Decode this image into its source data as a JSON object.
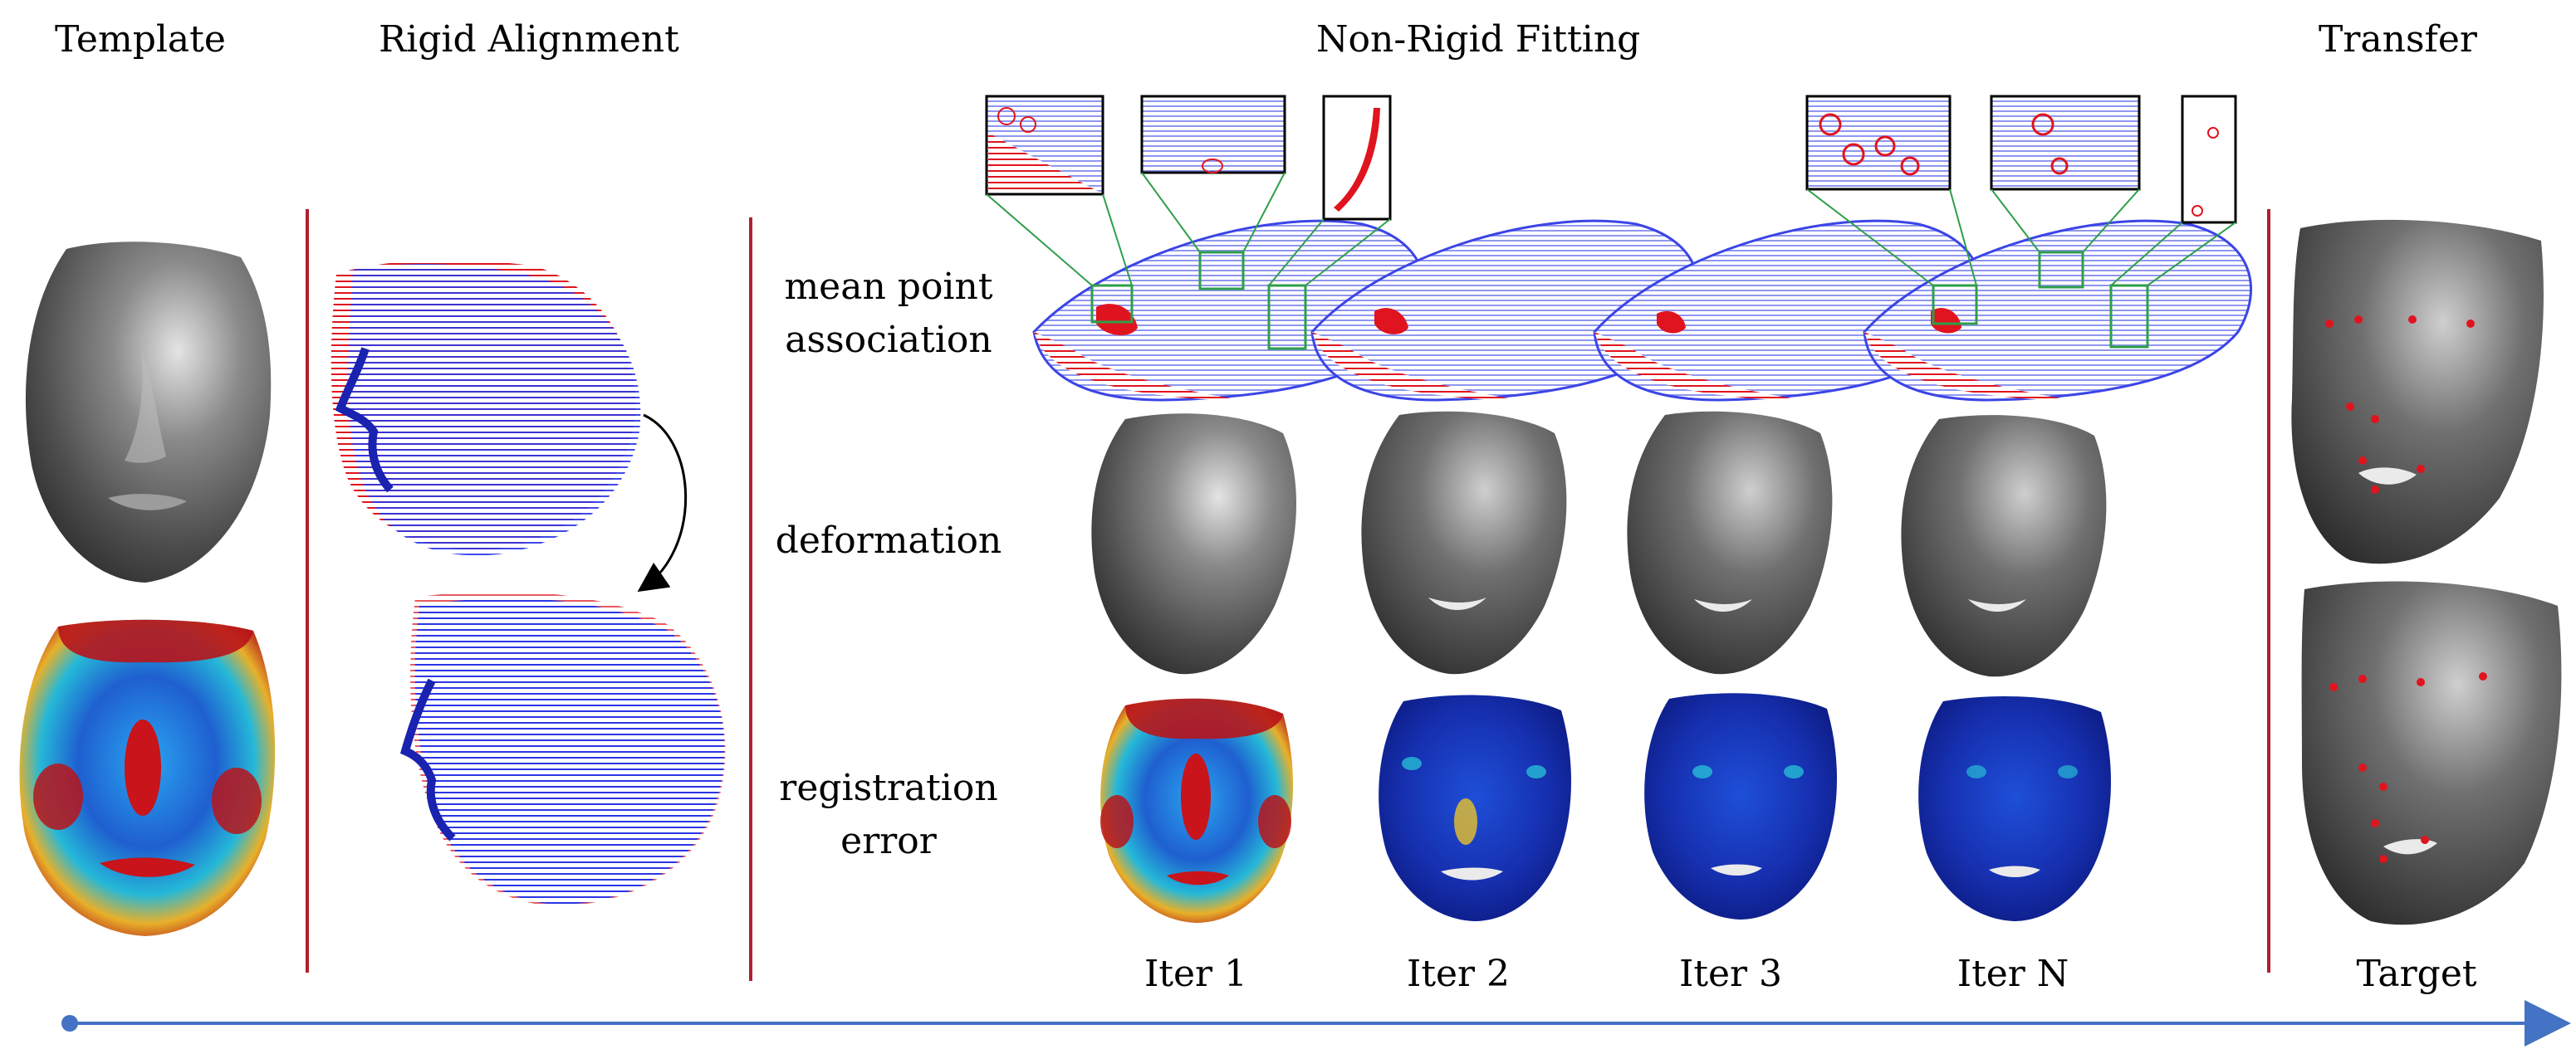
{
  "headers": {
    "template": "Template",
    "rigid": "Rigid Alignment",
    "nonrigid": "Non-Rigid Fitting",
    "transfer": "Transfer"
  },
  "row_labels": {
    "association": [
      "mean point",
      "association"
    ],
    "deformation": "deformation",
    "error": [
      "registration",
      "error"
    ]
  },
  "iterations": [
    "Iter 1",
    "Iter 2",
    "Iter 3",
    "Iter N"
  ],
  "target_label": "Target",
  "colors": {
    "divider": "#b0202e",
    "arrow": "#4472c4",
    "zoom_box": "#2e9e4a",
    "points_blue": "#2b35e6",
    "points_red": "#e0141e",
    "mesh_gray": "#6b6b6b"
  }
}
